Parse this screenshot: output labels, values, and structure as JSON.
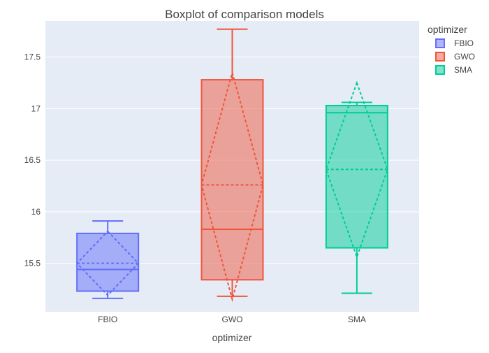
{
  "chart_data": {
    "type": "box",
    "title": "Boxplot of comparison models",
    "xlabel": "optimizer",
    "ylabel": "",
    "ylim": [
      15.03,
      17.85
    ],
    "y_ticks": [
      "15.5",
      "16",
      "16.5",
      "17",
      "17.5"
    ],
    "y_tick_values": [
      15.5,
      16,
      16.5,
      17,
      17.5
    ],
    "categories": [
      "FBIO",
      "GWO",
      "SMA"
    ],
    "legend": {
      "title": "optimizer",
      "placement": "right",
      "entries": [
        "FBIO",
        "GWO",
        "SMA"
      ]
    },
    "grid": true,
    "series": [
      {
        "name": "FBIO",
        "color": "#636EFA",
        "fill": "rgba(99,110,250,0.5)",
        "min": 15.16,
        "q1": 15.23,
        "median": 15.44,
        "q3": 15.79,
        "max": 15.91,
        "mean": 15.5,
        "mean_minus_sd": 15.19,
        "mean_plus_sd": 15.81
      },
      {
        "name": "GWO",
        "color": "#EF553B",
        "fill": "rgba(239,85,59,0.5)",
        "min": 15.18,
        "q1": 15.34,
        "median": 15.83,
        "q3": 17.28,
        "max": 17.77,
        "mean": 16.26,
        "mean_minus_sd": 15.15,
        "mean_plus_sd": 17.35
      },
      {
        "name": "SMA",
        "color": "#00CC96",
        "fill": "rgba(0,204,150,0.5)",
        "min": 15.21,
        "q1": 15.65,
        "median": 16.96,
        "q3": 17.03,
        "max": 17.06,
        "mean": 16.41,
        "mean_minus_sd": 15.56,
        "mean_plus_sd": 17.25
      }
    ]
  }
}
